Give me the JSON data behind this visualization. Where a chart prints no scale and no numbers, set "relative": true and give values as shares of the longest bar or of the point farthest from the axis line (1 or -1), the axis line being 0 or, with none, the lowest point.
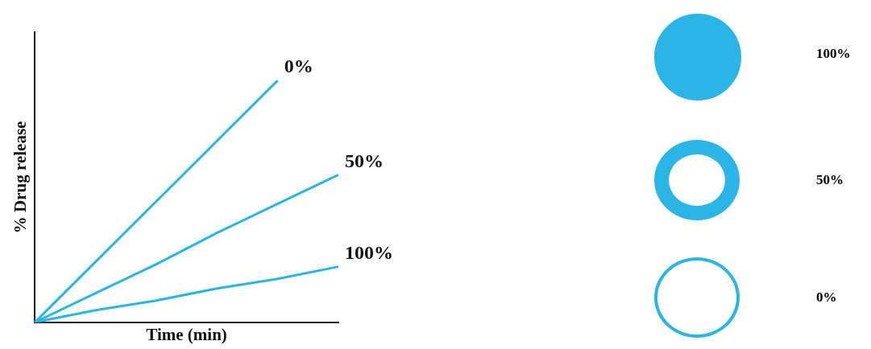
{
  "chart_data": {
    "type": "line",
    "relative": true,
    "xlabel": "Time (min)",
    "ylabel": "% Drug release",
    "legend": false,
    "grid": false,
    "marker": "none",
    "line_style": "solid",
    "categories": [
      null,
      null,
      null,
      null,
      null,
      null
    ],
    "series": [
      {
        "name": "0%",
        "color": "#29b5e6",
        "values": [
          0,
          0.25,
          0.5,
          0.75,
          1,
          null
        ]
      },
      {
        "name": "50%",
        "color": "#29b5e6",
        "values": [
          0,
          0.12,
          0.24,
          0.37,
          0.49,
          0.61
        ]
      },
      {
        "name": "100%",
        "color": "#29b5e6",
        "values": [
          0,
          0.05,
          0.09,
          0.14,
          0.18,
          0.23
        ]
      }
    ],
    "annotations": [
      "100%",
      "50%",
      "0%"
    ]
  }
}
